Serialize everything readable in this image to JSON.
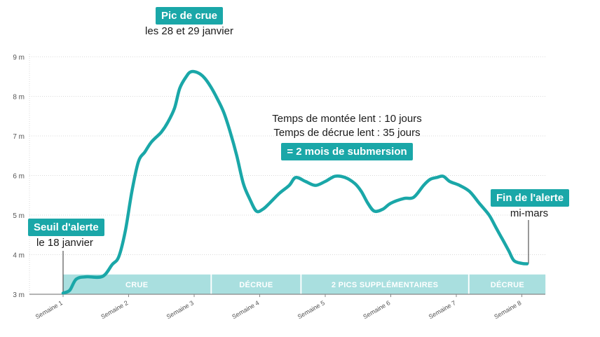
{
  "colors": {
    "curve": "#1aa7a8",
    "band": "#a9dfdf",
    "grid": "#d9d9d9",
    "tag_bg": "#1aa7a8"
  },
  "chart_data": {
    "type": "line",
    "title": "",
    "xlabel": "",
    "ylabel": "",
    "ylim": [
      3,
      9
    ],
    "y_unit": "m",
    "yticks": [
      "3 m",
      "4 m",
      "5 m",
      "6 m",
      "7 m",
      "8 m",
      "9 m"
    ],
    "categories": [
      "Semaine 1",
      "Semaine 2",
      "Semaine 3",
      "Semaine 4",
      "Semaine 5",
      "Semaine 6",
      "Semaine 7",
      "Semaine 8"
    ],
    "grid": true,
    "series": [
      {
        "name": "",
        "points": [
          [
            1.0,
            3.03
          ],
          [
            1.1,
            3.1
          ],
          [
            1.2,
            3.38
          ],
          [
            1.35,
            3.44
          ],
          [
            1.6,
            3.45
          ],
          [
            1.75,
            3.75
          ],
          [
            1.85,
            3.95
          ],
          [
            1.95,
            4.6
          ],
          [
            2.05,
            5.6
          ],
          [
            2.15,
            6.35
          ],
          [
            2.25,
            6.6
          ],
          [
            2.35,
            6.85
          ],
          [
            2.5,
            7.1
          ],
          [
            2.6,
            7.35
          ],
          [
            2.7,
            7.7
          ],
          [
            2.78,
            8.2
          ],
          [
            2.88,
            8.5
          ],
          [
            2.95,
            8.62
          ],
          [
            3.05,
            8.6
          ],
          [
            3.15,
            8.48
          ],
          [
            3.25,
            8.25
          ],
          [
            3.35,
            7.95
          ],
          [
            3.45,
            7.6
          ],
          [
            3.55,
            7.1
          ],
          [
            3.65,
            6.5
          ],
          [
            3.75,
            5.8
          ],
          [
            3.85,
            5.4
          ],
          [
            3.95,
            5.1
          ],
          [
            4.05,
            5.15
          ],
          [
            4.15,
            5.3
          ],
          [
            4.3,
            5.55
          ],
          [
            4.45,
            5.75
          ],
          [
            4.55,
            5.95
          ],
          [
            4.7,
            5.85
          ],
          [
            4.85,
            5.75
          ],
          [
            5.0,
            5.85
          ],
          [
            5.15,
            5.98
          ],
          [
            5.3,
            5.95
          ],
          [
            5.45,
            5.8
          ],
          [
            5.55,
            5.6
          ],
          [
            5.65,
            5.3
          ],
          [
            5.75,
            5.1
          ],
          [
            5.88,
            5.15
          ],
          [
            6.0,
            5.3
          ],
          [
            6.2,
            5.42
          ],
          [
            6.35,
            5.45
          ],
          [
            6.5,
            5.75
          ],
          [
            6.6,
            5.9
          ],
          [
            6.7,
            5.95
          ],
          [
            6.8,
            5.98
          ],
          [
            6.9,
            5.85
          ],
          [
            7.05,
            5.75
          ],
          [
            7.2,
            5.6
          ],
          [
            7.35,
            5.3
          ],
          [
            7.5,
            5.0
          ],
          [
            7.6,
            4.7
          ],
          [
            7.7,
            4.4
          ],
          [
            7.8,
            4.1
          ],
          [
            7.88,
            3.85
          ],
          [
            8.0,
            3.78
          ],
          [
            8.08,
            3.77
          ]
        ]
      }
    ],
    "phases": [
      {
        "label": "CRUE",
        "start": 1.0,
        "end": 3.25
      },
      {
        "label": "DÉCRUE",
        "start": 3.27,
        "end": 4.62
      },
      {
        "label": "2 PICS SUPPLÉMENTAIRES",
        "start": 4.64,
        "end": 7.18
      },
      {
        "label": "DÉCRUE",
        "start": 7.2,
        "end": 8.36
      }
    ],
    "annotations": {
      "peak_tag": "Pic de crue",
      "peak_text": "les 28 et 29 janvier",
      "rise_text": "Temps de montée lent : 10 jours",
      "fall_text": "Temps de décrue lent : 35 jours",
      "submersion_tag": "= 2 mois de submersion",
      "threshold_tag": "Seuil d'alerte",
      "threshold_text": "le 18 janvier",
      "end_tag": "Fin de l'alerte",
      "end_text": "mi-mars"
    }
  }
}
